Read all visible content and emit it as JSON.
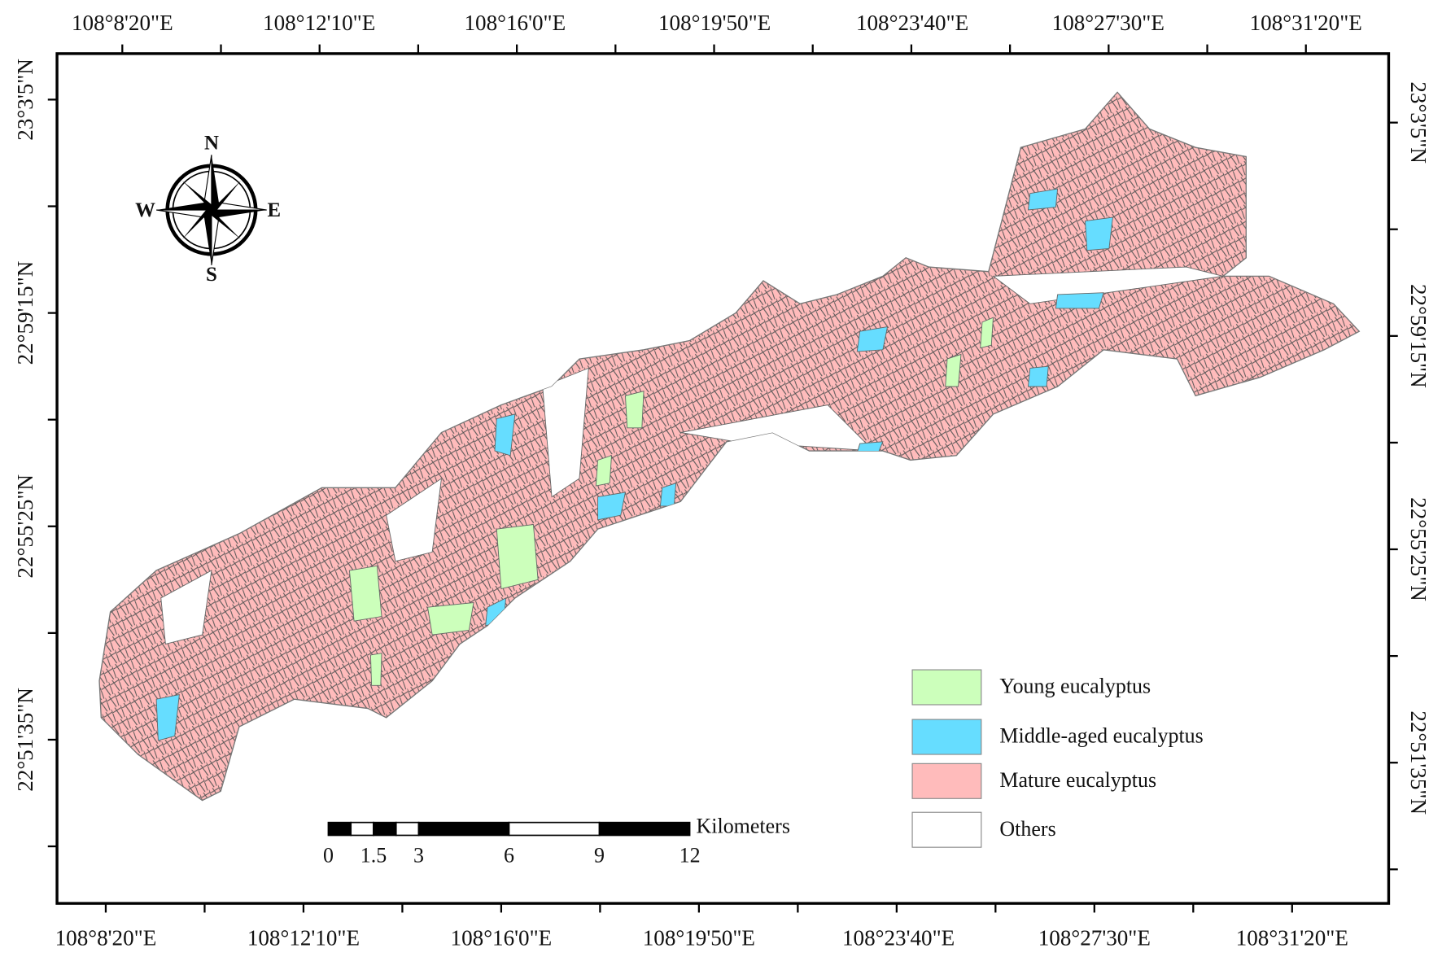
{
  "map": {
    "top_labels": [
      "108°8'20\"E",
      "108°12'10\"E",
      "108°16'0\"E",
      "108°19'50\"E",
      "108°23'40\"E",
      "108°27'30\"E",
      "108°31'20\"E"
    ],
    "bottom_labels": [
      "108°8'20\"E",
      "108°12'10\"E",
      "108°16'0\"E",
      "108°19'50\"E",
      "108°23'40\"E",
      "108°27'30\"E",
      "108°31'20\"E"
    ],
    "left_labels": [
      "23°3'5\"N",
      "22°59'15\"N",
      "22°55'25\"N",
      "22°51'35\"N"
    ],
    "right_labels": [
      "23°3'5\"N",
      "22°59'15\"N",
      "22°55'25\"N",
      "22°51'35\"N"
    ],
    "compass": {
      "north": "N",
      "south": "S",
      "east": "E",
      "west": "W"
    },
    "legend": [
      {
        "label": "Young eucalyptus",
        "color": "#ccffbb"
      },
      {
        "label": "Middle-aged eucalyptus",
        "color": "#66ddff"
      },
      {
        "label": "Mature eucalyptus",
        "color": "#ffbbbb"
      },
      {
        "label": "Others",
        "color": "#ffffff"
      }
    ],
    "scale_bar": {
      "unit": "Kilometers",
      "ticks": [
        0,
        1.5,
        3,
        6,
        9,
        12
      ]
    }
  }
}
